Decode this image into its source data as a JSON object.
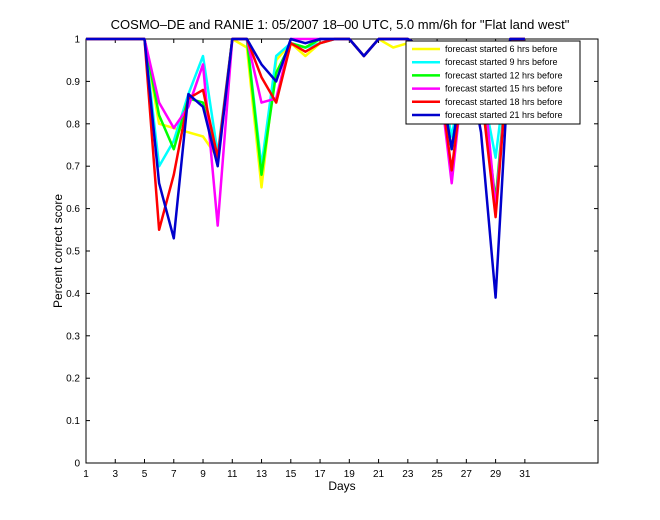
{
  "chart_data": {
    "type": "line",
    "title": "COSMO–DE and RANIE 1: 05/2007 18–00 UTC, 5.0 mm/6h for \"Flat land west\"",
    "xlabel": "Days",
    "ylabel": "Percent correct score",
    "xlim": [
      1,
      36
    ],
    "ylim": [
      0,
      1
    ],
    "xticks": [
      "1",
      "3",
      "5",
      "7",
      "9",
      "11",
      "13",
      "15",
      "17",
      "19",
      "21",
      "23",
      "25",
      "27",
      "29",
      "31"
    ],
    "yticks": [
      "0",
      "0.1",
      "0.2",
      "0.3",
      "0.4",
      "0.5",
      "0.6",
      "0.7",
      "0.8",
      "0.9",
      "1"
    ],
    "x": [
      1,
      2,
      3,
      4,
      5,
      6,
      7,
      8,
      9,
      10,
      11,
      12,
      13,
      14,
      15,
      16,
      17,
      18,
      19,
      20,
      21,
      22,
      23,
      24,
      25,
      26,
      27,
      28,
      29,
      30,
      31
    ],
    "legend_position": "top-right",
    "series": [
      {
        "name": "forecast started 6 hrs before",
        "color": "#ffff00",
        "values": [
          1,
          1,
          1,
          1,
          1,
          0.8,
          0.79,
          0.78,
          0.77,
          0.72,
          1,
          0.98,
          0.65,
          0.95,
          0.99,
          0.96,
          0.99,
          1,
          1,
          0.96,
          1,
          0.98,
          0.99,
          0.97,
          0.95,
          0.86,
          0.95,
          0.87,
          0.84,
          1,
          1
        ]
      },
      {
        "name": "forecast started 9 hrs before",
        "color": "#00ffff",
        "values": [
          1,
          1,
          1,
          1,
          1,
          0.7,
          0.76,
          0.87,
          0.96,
          0.73,
          1,
          1,
          0.7,
          0.96,
          0.99,
          0.98,
          0.99,
          1,
          1,
          0.96,
          1,
          1,
          1,
          0.98,
          0.95,
          0.77,
          0.96,
          0.9,
          0.72,
          1,
          1
        ]
      },
      {
        "name": "forecast started 12 hrs before",
        "color": "#00ff00",
        "values": [
          1,
          1,
          1,
          1,
          1,
          0.82,
          0.74,
          0.86,
          0.85,
          0.71,
          1,
          1,
          0.68,
          0.92,
          0.99,
          0.98,
          1,
          1,
          1,
          0.96,
          1,
          1,
          1,
          0.98,
          0.95,
          0.74,
          0.97,
          0.9,
          0.62,
          1,
          1
        ]
      },
      {
        "name": "forecast started 15 hrs before",
        "color": "#ff00ff",
        "values": [
          1,
          1,
          1,
          1,
          1,
          0.85,
          0.79,
          0.84,
          0.94,
          0.56,
          1,
          1,
          0.85,
          0.86,
          1,
          1,
          1,
          1,
          1,
          0.96,
          1,
          1,
          1,
          0.98,
          0.95,
          0.66,
          0.98,
          0.97,
          0.6,
          1,
          1
        ]
      },
      {
        "name": "forecast started 18 hrs before",
        "color": "#ff0000",
        "values": [
          1,
          1,
          1,
          1,
          1,
          0.55,
          0.68,
          0.86,
          0.88,
          0.72,
          1,
          1,
          0.91,
          0.85,
          0.99,
          0.97,
          0.99,
          1,
          1,
          0.96,
          1,
          1,
          1,
          0.98,
          0.95,
          0.69,
          0.97,
          0.88,
          0.58,
          1,
          1
        ]
      },
      {
        "name": "forecast started 21 hrs before",
        "color": "#0000cc",
        "values": [
          1,
          1,
          1,
          1,
          1,
          0.66,
          0.53,
          0.87,
          0.84,
          0.7,
          1,
          1,
          0.94,
          0.9,
          1,
          0.99,
          1,
          1,
          1,
          0.96,
          1,
          1,
          1,
          0.98,
          0.95,
          0.74,
          0.97,
          0.78,
          0.39,
          1,
          1
        ]
      }
    ]
  }
}
